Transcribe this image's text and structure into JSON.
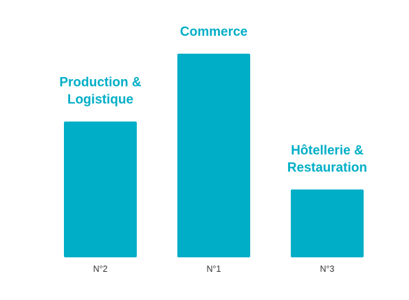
{
  "colors": {
    "bar": "#00aec7",
    "label": "#00aec7",
    "tick": "#333333"
  },
  "chart_data": {
    "type": "bar",
    "categories": [
      "N°2",
      "N°1",
      "N°3"
    ],
    "values": [
      100,
      150,
      50
    ],
    "ylim": [
      0,
      150
    ],
    "grid": false,
    "legend": "none",
    "bar_labels": [
      [
        "Production &",
        "Logistique"
      ],
      [
        "Commerce"
      ],
      [
        "Hôtellerie &",
        "Restauration"
      ]
    ]
  }
}
